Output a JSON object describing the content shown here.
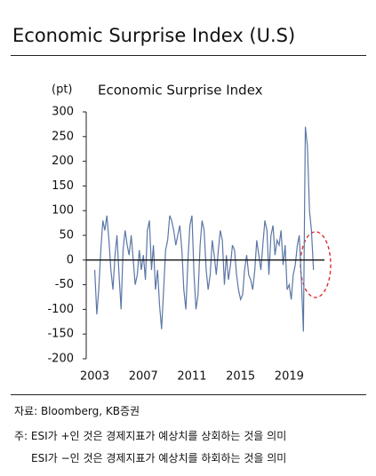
{
  "header": {
    "title": "Economic Surprise Index (U.S)"
  },
  "chart_data": {
    "type": "line",
    "title": "Economic Surprise Index",
    "y_label": "(pt)",
    "color": "#5b77a6",
    "xlim": [
      2002.3,
      2021.9
    ],
    "xticks": [
      2003,
      2007,
      2011,
      2015,
      2019
    ],
    "ylim": [
      -200,
      300
    ],
    "yticks": [
      -200,
      -150,
      -100,
      -50,
      0,
      50,
      100,
      150,
      200,
      250,
      300
    ],
    "x": [
      2003,
      2003.17,
      2003.33,
      2003.5,
      2003.67,
      2003.83,
      2004,
      2004.17,
      2004.33,
      2004.5,
      2004.67,
      2004.83,
      2005,
      2005.17,
      2005.33,
      2005.5,
      2005.67,
      2005.83,
      2006,
      2006.17,
      2006.33,
      2006.5,
      2006.67,
      2006.83,
      2007,
      2007.17,
      2007.33,
      2007.5,
      2007.67,
      2007.83,
      2008,
      2008.17,
      2008.33,
      2008.5,
      2008.67,
      2008.83,
      2009,
      2009.17,
      2009.33,
      2009.5,
      2009.67,
      2009.83,
      2010,
      2010.17,
      2010.33,
      2010.5,
      2010.67,
      2010.83,
      2011,
      2011.17,
      2011.33,
      2011.5,
      2011.67,
      2011.83,
      2012,
      2012.17,
      2012.33,
      2012.5,
      2012.67,
      2012.83,
      2013,
      2013.17,
      2013.33,
      2013.5,
      2013.67,
      2013.83,
      2014,
      2014.17,
      2014.33,
      2014.5,
      2014.67,
      2014.83,
      2015,
      2015.17,
      2015.33,
      2015.5,
      2015.67,
      2015.83,
      2016,
      2016.17,
      2016.33,
      2016.5,
      2016.67,
      2016.83,
      2017,
      2017.17,
      2017.33,
      2017.5,
      2017.67,
      2017.83,
      2018,
      2018.17,
      2018.33,
      2018.5,
      2018.67,
      2018.83,
      2019,
      2019.17,
      2019.33,
      2019.5,
      2019.67,
      2019.83,
      2020,
      2020.17,
      2020.33,
      2020.5,
      2020.67,
      2020.83,
      2021
    ],
    "values": [
      -20,
      -110,
      -60,
      20,
      80,
      60,
      90,
      40,
      -20,
      -60,
      10,
      50,
      -30,
      -100,
      20,
      60,
      30,
      10,
      50,
      0,
      -50,
      -30,
      20,
      -20,
      10,
      -40,
      60,
      80,
      -20,
      30,
      -60,
      -20,
      -90,
      -140,
      -60,
      20,
      40,
      90,
      80,
      60,
      30,
      50,
      70,
      20,
      -60,
      -100,
      0,
      70,
      90,
      -30,
      -100,
      -70,
      30,
      80,
      60,
      -20,
      -60,
      -30,
      40,
      10,
      -30,
      20,
      60,
      40,
      -50,
      10,
      -40,
      -10,
      30,
      20,
      -30,
      -60,
      -80,
      -70,
      -20,
      10,
      -30,
      -40,
      -60,
      -20,
      40,
      10,
      -20,
      30,
      80,
      60,
      -30,
      50,
      70,
      10,
      40,
      30,
      60,
      -10,
      30,
      -60,
      -50,
      -80,
      -30,
      -10,
      30,
      50,
      -40,
      -145,
      270,
      230,
      100,
      60,
      -20
    ]
  },
  "footer": {
    "source": "자료: Bloomberg, KB증권",
    "notes": [
      "주: ESI가 +인 것은 경제지표가 예상치를 상회하는 것을 의미",
      "ESI가 −인 것은 경제지표가 예상치를 하회하는 것을 의미"
    ]
  }
}
